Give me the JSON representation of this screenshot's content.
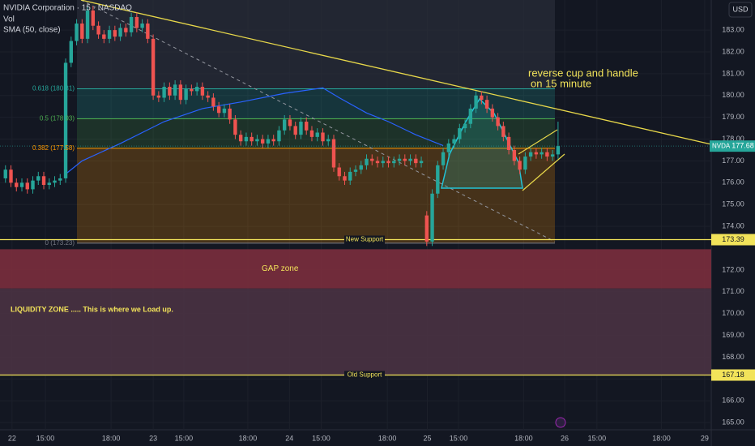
{
  "chart_data": {
    "type": "candlestick",
    "title": "NVIDIA Corporation · 15 · NASDAQ",
    "indicators": [
      "Vol",
      "SMA (50, close)"
    ],
    "currency": "USD",
    "symbol": "NVDA",
    "up_color": "#26a69a",
    "down_color": "#ef5350",
    "grid": true,
    "xlim": [
      0,
      130
    ],
    "ylim": [
      164.67,
      184.38
    ],
    "xticks": [
      {
        "value": 2.2,
        "label": "22"
      },
      {
        "value": 8.3,
        "label": "15:00"
      },
      {
        "value": 20.3,
        "label": "18:00"
      },
      {
        "value": 28,
        "label": "23"
      },
      {
        "value": 33.6,
        "label": "15:00"
      },
      {
        "value": 45.3,
        "label": "18:00"
      },
      {
        "value": 52.9,
        "label": "24"
      },
      {
        "value": 58.7,
        "label": "15:00"
      },
      {
        "value": 70.8,
        "label": "18:00"
      },
      {
        "value": 78.1,
        "label": "25"
      },
      {
        "value": 83.8,
        "label": "15:00"
      },
      {
        "value": 95.7,
        "label": "18:00"
      },
      {
        "value": 103.2,
        "label": "26"
      },
      {
        "value": 109.1,
        "label": "15:00"
      },
      {
        "value": 120.9,
        "label": "18:00"
      },
      {
        "value": 128.8,
        "label": "29"
      }
    ],
    "yticks": [
      {
        "value": 165,
        "label": "165.00"
      },
      {
        "value": 166,
        "label": "166.00"
      },
      {
        "value": 167,
        "label": "167.00"
      },
      {
        "value": 168,
        "label": "168.00"
      },
      {
        "value": 169,
        "label": "169.00"
      },
      {
        "value": 170,
        "label": "170.00"
      },
      {
        "value": 171,
        "label": "171.00"
      },
      {
        "value": 172,
        "label": "172.00"
      },
      {
        "value": 174,
        "label": "174.00"
      },
      {
        "value": 175,
        "label": "175.00"
      },
      {
        "value": 176,
        "label": "176.00"
      },
      {
        "value": 177,
        "label": "177.00"
      },
      {
        "value": 178,
        "label": "178.00"
      },
      {
        "value": 179,
        "label": "179.00"
      },
      {
        "value": 180,
        "label": "180.00"
      },
      {
        "value": 181,
        "label": "181.00"
      },
      {
        "value": 182,
        "label": "182.00"
      },
      {
        "value": 183,
        "label": "183.00"
      }
    ],
    "x": [
      1,
      2,
      3,
      4,
      5,
      6,
      7,
      8,
      9,
      10,
      11,
      12,
      13,
      14,
      15,
      16,
      17,
      18,
      19,
      20,
      21,
      22,
      23,
      24,
      25,
      26,
      27,
      28,
      29,
      30,
      31,
      32,
      33,
      34,
      35,
      36,
      37,
      38,
      39,
      40,
      41,
      42,
      43,
      44,
      45,
      46,
      47,
      48,
      49,
      50,
      51,
      52,
      53,
      54,
      55,
      56,
      57,
      58,
      59,
      60,
      61,
      62,
      63,
      64,
      65,
      66,
      67,
      68,
      69,
      70,
      71,
      72,
      73,
      74,
      75,
      76,
      77,
      78,
      79,
      80,
      81,
      82,
      83,
      84,
      85,
      86,
      87,
      88,
      89,
      90,
      91,
      92,
      93,
      94,
      95,
      96,
      97,
      98,
      99,
      100,
      101,
      102
    ],
    "open": [
      176.2,
      176.6,
      176.0,
      175.8,
      176.0,
      175.7,
      176.1,
      176.3,
      175.9,
      176.0,
      176.1,
      176.2,
      181.5,
      182.5,
      183.3,
      182.6,
      183.9,
      183.2,
      182.8,
      182.6,
      183.0,
      182.7,
      183.1,
      182.9,
      183.6,
      183.1,
      183.3,
      182.6,
      180.0,
      179.9,
      180.4,
      180.0,
      180.5,
      179.8,
      180.3,
      180.2,
      180.4,
      180.0,
      179.9,
      179.5,
      179.2,
      179.4,
      178.9,
      178.2,
      177.9,
      178.1,
      177.9,
      178.0,
      177.8,
      178.0,
      177.9,
      178.4,
      178.9,
      178.6,
      178.2,
      178.8,
      178.4,
      178.1,
      178.3,
      177.9,
      178.0,
      176.7,
      176.3,
      176.1,
      176.5,
      176.6,
      176.8,
      177.1,
      177.0,
      176.9,
      177.0,
      176.9,
      177.0,
      177.1,
      177.0,
      177.1,
      176.9,
      174.5,
      173.3,
      175.5,
      176.8,
      177.4,
      177.8,
      178.0,
      178.5,
      178.7,
      179.4,
      180.0,
      179.8,
      179.4,
      179.0,
      178.6,
      178.1,
      177.5,
      177.0,
      176.6,
      177.2,
      177.4,
      177.3,
      177.4,
      177.2,
      177.3
    ],
    "high": [
      176.8,
      176.8,
      176.2,
      176.2,
      176.2,
      176.3,
      176.5,
      176.5,
      176.2,
      176.3,
      176.4,
      181.7,
      182.7,
      183.5,
      183.5,
      184.1,
      184.1,
      183.4,
      183.0,
      183.2,
      183.2,
      183.3,
      183.3,
      183.8,
      183.8,
      183.5,
      183.5,
      182.8,
      180.2,
      180.6,
      180.6,
      180.7,
      180.7,
      180.5,
      180.5,
      180.6,
      180.6,
      180.2,
      180.1,
      179.7,
      179.6,
      179.6,
      179.1,
      178.4,
      178.3,
      178.3,
      178.2,
      178.2,
      178.2,
      178.2,
      178.6,
      179.1,
      179.1,
      178.8,
      179.0,
      179.0,
      178.6,
      178.5,
      178.5,
      178.2,
      178.2,
      176.9,
      176.5,
      176.7,
      176.8,
      177.0,
      177.3,
      177.3,
      177.2,
      177.2,
      177.2,
      177.2,
      177.3,
      177.3,
      177.3,
      177.3,
      177.2,
      174.7,
      175.7,
      177.0,
      177.6,
      178.0,
      178.2,
      178.7,
      178.9,
      179.6,
      180.2,
      180.2,
      180.0,
      179.6,
      179.2,
      178.8,
      178.3,
      177.7,
      177.2,
      177.4,
      177.6,
      177.6,
      177.6,
      177.6,
      177.5,
      178.8
    ],
    "low": [
      176.0,
      175.8,
      175.6,
      175.6,
      175.5,
      175.5,
      175.9,
      175.7,
      175.7,
      175.8,
      175.9,
      176.0,
      181.3,
      182.3,
      182.4,
      182.4,
      183.0,
      182.6,
      182.4,
      182.4,
      182.5,
      182.5,
      182.7,
      182.7,
      182.9,
      182.9,
      182.4,
      179.8,
      179.7,
      179.7,
      179.8,
      179.8,
      179.6,
      179.6,
      180.0,
      180.0,
      179.8,
      179.7,
      179.3,
      179.0,
      179.0,
      178.7,
      178.0,
      177.7,
      177.7,
      177.7,
      177.7,
      177.6,
      177.6,
      177.7,
      177.7,
      178.2,
      178.4,
      178.0,
      178.0,
      178.2,
      177.9,
      177.9,
      177.7,
      177.7,
      176.5,
      176.1,
      175.9,
      175.9,
      176.3,
      176.4,
      176.6,
      176.8,
      176.7,
      176.7,
      176.7,
      176.7,
      176.8,
      176.8,
      176.8,
      176.7,
      176.7,
      173.1,
      173.1,
      175.3,
      176.6,
      177.2,
      177.6,
      177.8,
      178.3,
      178.5,
      179.2,
      179.6,
      179.2,
      178.8,
      178.4,
      177.9,
      177.3,
      176.8,
      176.4,
      176.4,
      177.0,
      177.1,
      177.1,
      177.0,
      177.0,
      177.1
    ],
    "close": [
      176.6,
      176.0,
      175.8,
      176.0,
      175.7,
      176.1,
      176.3,
      175.9,
      176.0,
      176.1,
      176.2,
      181.5,
      182.5,
      183.3,
      182.6,
      183.9,
      183.2,
      182.8,
      182.6,
      183.0,
      182.7,
      183.1,
      182.9,
      183.6,
      183.1,
      183.3,
      182.6,
      180.0,
      179.9,
      180.4,
      180.0,
      180.5,
      179.8,
      180.3,
      180.2,
      180.4,
      180.0,
      179.9,
      179.5,
      179.2,
      179.4,
      178.9,
      178.2,
      177.9,
      178.1,
      177.9,
      178.0,
      177.8,
      178.0,
      177.9,
      178.4,
      178.9,
      178.6,
      178.2,
      178.8,
      178.4,
      178.1,
      178.3,
      177.9,
      178.0,
      176.7,
      176.3,
      176.1,
      176.5,
      176.6,
      176.8,
      177.1,
      177.0,
      176.9,
      177.0,
      176.9,
      177.0,
      177.1,
      177.0,
      177.1,
      176.9,
      177.0,
      173.3,
      175.5,
      176.8,
      177.4,
      177.8,
      178.0,
      178.5,
      178.7,
      179.4,
      180.0,
      179.8,
      179.4,
      179.0,
      178.6,
      178.1,
      177.5,
      177.0,
      176.6,
      177.2,
      177.4,
      177.3,
      177.4,
      177.2,
      177.3,
      177.68
    ],
    "sma": {
      "color": "#2962ff",
      "x": [
        12,
        15,
        22,
        30,
        37,
        44,
        52,
        59,
        62,
        67,
        71,
        76,
        81
      ],
      "values": [
        176.4,
        177.0,
        177.8,
        178.8,
        179.4,
        179.7,
        180.1,
        180.35,
        179.9,
        179.2,
        178.8,
        178.2,
        177.7
      ]
    },
    "fib_levels": [
      {
        "label": "0.618 (180.31)",
        "value": 180.31,
        "color": "#26a69a"
      },
      {
        "label": "0.5 (178.93)",
        "value": 178.93,
        "color": "#4caf50"
      },
      {
        "label": "0.382 (177.58)",
        "value": 177.58,
        "color": "#ff9800"
      },
      {
        "label": "0 (173.23)",
        "value": 173.23,
        "color": "#787b86"
      }
    ],
    "support_levels": [
      {
        "label": "New Support",
        "value": 173.39
      },
      {
        "label": "Old Support",
        "value": 167.18
      }
    ],
    "zones": [
      {
        "label": "GAP zone",
        "range": [
          171.15,
          172.95
        ],
        "color": "#7b2d3d"
      },
      {
        "label": "LIQUIDITY ZONE ..... This is where we Load up.",
        "range": [
          167.18,
          171.15
        ],
        "color": "#4a3242"
      }
    ],
    "annotation": [
      "reverse cup and handle",
      "on 15 minute"
    ]
  }
}
